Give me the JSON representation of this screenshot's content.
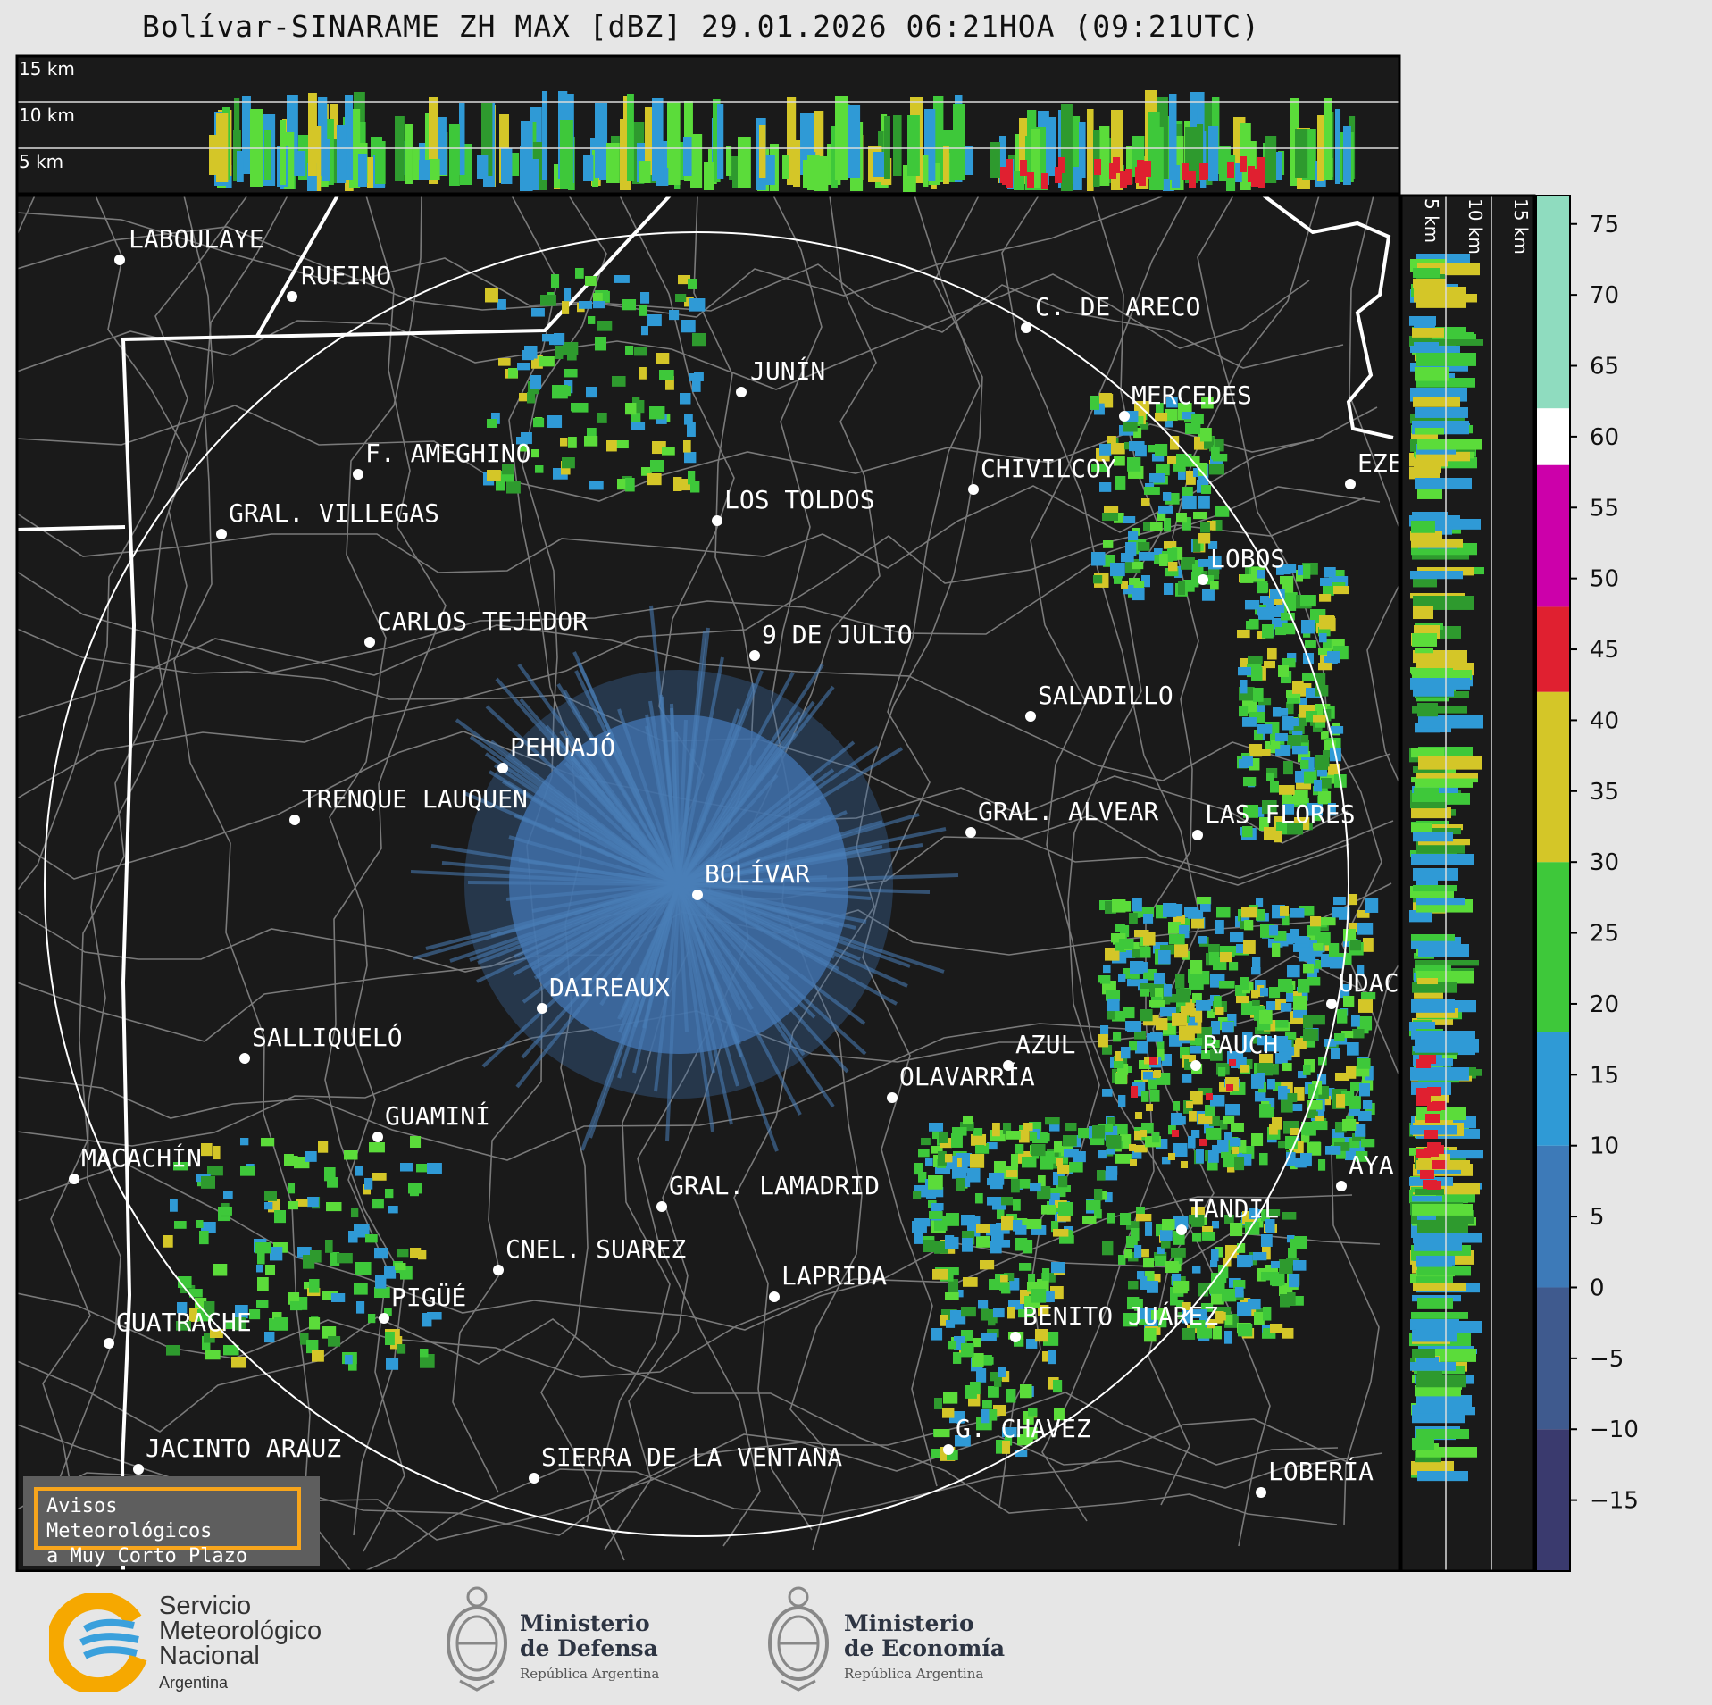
{
  "title": "Bolívar-SINARAME ZH MAX [dBZ] 29.01.2026 06:21HOA (09:21UTC)",
  "height_labels_top": [
    "15 km",
    "10 km",
    "5 km"
  ],
  "height_labels_side": [
    "5 km",
    "10 km",
    "15 km"
  ],
  "radar_center": "BOLÍVAR",
  "cities": [
    {
      "name": "LABOULAYE"
    },
    {
      "name": "RUFINO"
    },
    {
      "name": "C. DE ARECO"
    },
    {
      "name": "JUNÍN"
    },
    {
      "name": "MERCEDES"
    },
    {
      "name": "F. AMEGHINO"
    },
    {
      "name": "CHIVILCOY"
    },
    {
      "name": "EZE"
    },
    {
      "name": "GRAL. VILLEGAS"
    },
    {
      "name": "LOS TOLDOS"
    },
    {
      "name": "LOBOS"
    },
    {
      "name": "CARLOS TEJEDOR"
    },
    {
      "name": "9 DE JULIO"
    },
    {
      "name": "SALADILLO"
    },
    {
      "name": "PEHUAJÓ"
    },
    {
      "name": "TRENQUE LAUQUEN"
    },
    {
      "name": "GRAL. ALVEAR"
    },
    {
      "name": "LAS FLORES"
    },
    {
      "name": "BOLÍVAR"
    },
    {
      "name": "DAIREAUX"
    },
    {
      "name": "UDAC"
    },
    {
      "name": "SALLIQUELÓ"
    },
    {
      "name": "AZUL"
    },
    {
      "name": "RAUCH"
    },
    {
      "name": "OLAVARRÍA"
    },
    {
      "name": "GUAMINÍ"
    },
    {
      "name": "MACACHÍN"
    },
    {
      "name": "AYA"
    },
    {
      "name": "GRAL. LAMADRID"
    },
    {
      "name": "TANDIL"
    },
    {
      "name": "CNEL. SUAREZ"
    },
    {
      "name": "LAPRIDA"
    },
    {
      "name": "PIGÜÉ"
    },
    {
      "name": "GUATRACHE"
    },
    {
      "name": "BENITO JUÁREZ"
    },
    {
      "name": "G. CHAVEZ"
    },
    {
      "name": "JACINTO ARAUZ"
    },
    {
      "name": "SIERRA DE LA VENTANA"
    },
    {
      "name": "LOBERÍA"
    }
  ],
  "colorbar": {
    "ticks": [
      "75",
      "70",
      "65",
      "60",
      "55",
      "50",
      "45",
      "40",
      "35",
      "30",
      "25",
      "20",
      "15",
      "10",
      "5",
      "0",
      "−5",
      "−10",
      "−15"
    ],
    "min": -20,
    "max": 77,
    "stops": [
      {
        "from": -20,
        "to": -10,
        "color": "#3a3a6e"
      },
      {
        "from": -10,
        "to": 0,
        "color": "#3f5a8e"
      },
      {
        "from": 0,
        "to": 10,
        "color": "#3d7ab8"
      },
      {
        "from": 10,
        "to": 18,
        "color": "#2f9ad6"
      },
      {
        "from": 18,
        "to": 30,
        "color": "#3ec83a"
      },
      {
        "from": 30,
        "to": 42,
        "color": "#d4c628"
      },
      {
        "from": 42,
        "to": 48,
        "color": "#e02030"
      },
      {
        "from": 48,
        "to": 58,
        "color": "#cc00aa"
      },
      {
        "from": 58,
        "to": 62,
        "color": "#ffffff"
      },
      {
        "from": 62,
        "to": 77,
        "color": "#8fdcbf"
      }
    ]
  },
  "warning_box": {
    "line1": "Avisos Meteorológicos",
    "line2": "a Muy Corto Plazo"
  },
  "footer": {
    "smn": {
      "line1": "Servicio",
      "line2": "Meteorológico",
      "line3": "Nacional",
      "country": "Argentina"
    },
    "defensa": {
      "line1": "Ministerio",
      "line2": "de Defensa",
      "sub": "República Argentina"
    },
    "economia": {
      "line1": "Ministerio",
      "line2": "de Economía",
      "sub": "República Argentina"
    }
  },
  "colors": {
    "map_bg": "#1a1a1a",
    "province_border": "#ffffff",
    "district_border": "#7a7a7a",
    "range_ring": "#ffffff",
    "low_echo": "#3f6fa8",
    "accent_orange": "#f7a51c"
  }
}
